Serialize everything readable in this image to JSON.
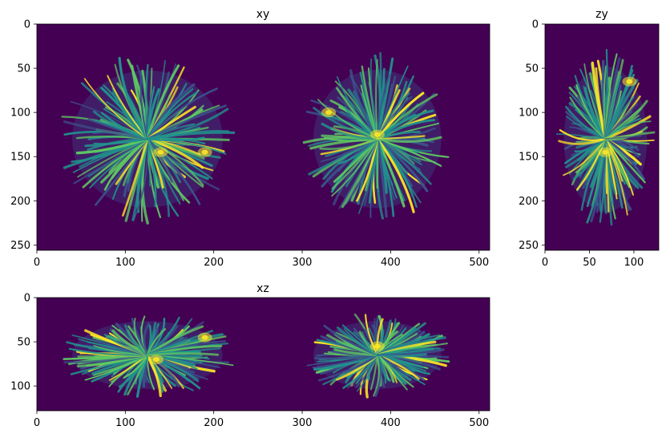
{
  "colors": {
    "background": "#440154",
    "viridis": [
      "#440154",
      "#3b528b",
      "#21918c",
      "#5ec962",
      "#fde725"
    ]
  },
  "chart_data": [
    {
      "type": "heatmap",
      "title": "xy",
      "xlabel": "",
      "ylabel": "",
      "xlim": [
        0,
        512
      ],
      "ylim": [
        256,
        0
      ],
      "xticks": [
        0,
        100,
        200,
        300,
        400,
        500
      ],
      "yticks": [
        0,
        50,
        100,
        150,
        200,
        250
      ],
      "colormap": "viridis",
      "description_values": {
        "blobs": [
          {
            "name": "left",
            "center_x": 125,
            "center_y": 130,
            "radius_x": 100,
            "radius_y": 97
          },
          {
            "name": "right",
            "center_x": 385,
            "center_y": 130,
            "radius_x": 85,
            "radius_y": 98
          }
        ],
        "bright_spots": [
          {
            "x": 140,
            "y": 145
          },
          {
            "x": 190,
            "y": 145
          },
          {
            "x": 330,
            "y": 100
          },
          {
            "x": 385,
            "y": 125
          }
        ]
      }
    },
    {
      "type": "heatmap",
      "title": "zy",
      "xlabel": "",
      "ylabel": "",
      "xlim": [
        0,
        128
      ],
      "ylim": [
        256,
        0
      ],
      "xticks": [
        0,
        50,
        100
      ],
      "yticks": [
        0,
        50,
        100,
        150,
        200,
        250
      ],
      "colormap": "viridis",
      "description_values": {
        "blobs": [
          {
            "name": "center",
            "center_x": 68,
            "center_y": 130,
            "radius_x": 55,
            "radius_y": 103
          }
        ],
        "bright_spots": [
          {
            "x": 68,
            "y": 145
          },
          {
            "x": 95,
            "y": 65
          }
        ]
      }
    },
    {
      "type": "heatmap",
      "title": "xz",
      "xlabel": "",
      "ylabel": "",
      "xlim": [
        0,
        512
      ],
      "ylim": [
        128,
        0
      ],
      "xticks": [
        0,
        100,
        200,
        300,
        400,
        500
      ],
      "yticks": [
        0,
        50,
        100
      ],
      "colormap": "viridis",
      "description_values": {
        "blobs": [
          {
            "name": "left",
            "center_x": 125,
            "center_y": 65,
            "radius_x": 100,
            "radius_y": 48
          },
          {
            "name": "right",
            "center_x": 385,
            "center_y": 65,
            "radius_x": 85,
            "radius_y": 48
          }
        ],
        "bright_spots": [
          {
            "x": 135,
            "y": 70
          },
          {
            "x": 190,
            "y": 45
          },
          {
            "x": 385,
            "y": 55
          }
        ]
      }
    }
  ]
}
